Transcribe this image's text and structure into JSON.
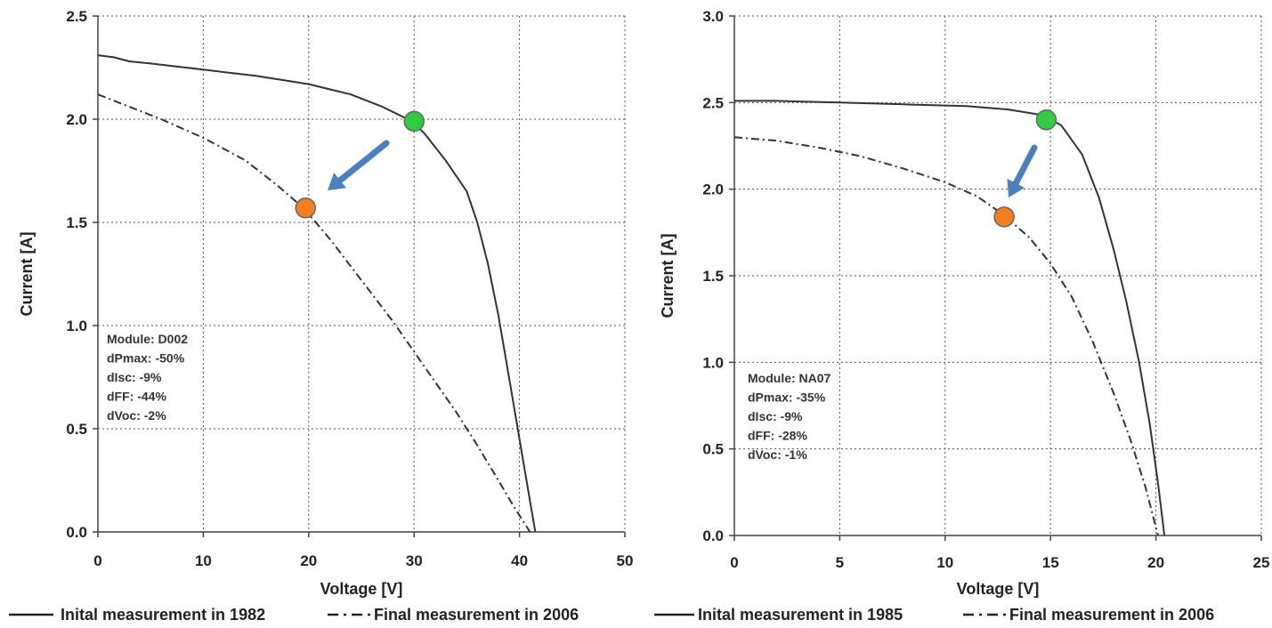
{
  "colors": {
    "curve": "#333333",
    "grid": "#555555",
    "initial_marker": "#2ecc40",
    "final_marker": "#f47f20",
    "arrow": "#4a7fc1"
  },
  "chart_data": [
    {
      "type": "line",
      "xlabel": "Voltage [V]",
      "ylabel": "Current [A]",
      "xlim": [
        0,
        50
      ],
      "ylim": [
        0,
        2.5
      ],
      "xticks": [
        "0",
        "10",
        "20",
        "30",
        "40",
        "50"
      ],
      "yticks": [
        "0.0",
        "0.5",
        "1.0",
        "1.5",
        "2.0",
        "2.5"
      ],
      "grid": true,
      "legend_position": "bottom",
      "info_box": [
        "Module: D002",
        "dPmax: -50%",
        "dIsc: -9%",
        "dFF: -44%",
        "dVoc: -2%"
      ],
      "series": [
        {
          "name": "Inital measurement in 1982",
          "style": "solid",
          "x": [
            0,
            1.5,
            3,
            5,
            10,
            15,
            20,
            24,
            27,
            29,
            30,
            31,
            33,
            35,
            36,
            37,
            38,
            39,
            40,
            41,
            41.5
          ],
          "y": [
            2.31,
            2.3,
            2.28,
            2.27,
            2.24,
            2.21,
            2.17,
            2.12,
            2.06,
            2.01,
            1.98,
            1.93,
            1.8,
            1.65,
            1.5,
            1.3,
            1.05,
            0.75,
            0.45,
            0.15,
            0
          ]
        },
        {
          "name": "Final measurement in 2006",
          "style": "dash-dot",
          "x": [
            0,
            3,
            6,
            10,
            14,
            17,
            19.5,
            22,
            25,
            28,
            31,
            34,
            36,
            38,
            39.5,
            41
          ],
          "y": [
            2.12,
            2.06,
            2.0,
            1.91,
            1.8,
            1.68,
            1.57,
            1.42,
            1.22,
            1.02,
            0.8,
            0.58,
            0.42,
            0.25,
            0.12,
            0
          ]
        }
      ],
      "markers": [
        {
          "label": "initial max power point",
          "x": 30,
          "y": 1.99,
          "color": "#2ecc40"
        },
        {
          "label": "final max power point",
          "x": 19.7,
          "y": 1.57,
          "color": "#f47f20"
        }
      ]
    },
    {
      "type": "line",
      "xlabel": "Voltage [V]",
      "ylabel": "Current [A]",
      "xlim": [
        0,
        25
      ],
      "ylim": [
        0,
        3.0
      ],
      "xticks": [
        "0",
        "5",
        "10",
        "15",
        "20",
        "25"
      ],
      "yticks": [
        "0.0",
        "0.5",
        "1.0",
        "1.5",
        "2.0",
        "2.5",
        "3.0"
      ],
      "grid": true,
      "legend_position": "bottom",
      "info_box": [
        "Module: NA07",
        "dPmax: -35%",
        "dIsc: -9%",
        "dFF: -28%",
        "dVoc: -1%"
      ],
      "series": [
        {
          "name": "Inital measurement in 1985",
          "style": "solid",
          "x": [
            0,
            2,
            5,
            8,
            11,
            13,
            14.5,
            15.5,
            16.5,
            17.3,
            18,
            18.6,
            19.2,
            19.7,
            20.1,
            20.4
          ],
          "y": [
            2.51,
            2.51,
            2.5,
            2.49,
            2.48,
            2.46,
            2.43,
            2.37,
            2.2,
            1.95,
            1.65,
            1.35,
            1.0,
            0.65,
            0.3,
            0
          ]
        },
        {
          "name": "Final measurement in 2006",
          "style": "dash-dot",
          "x": [
            0,
            2,
            4,
            6,
            8,
            10,
            11.5,
            12.8,
            14,
            15,
            16,
            17,
            18,
            18.8,
            19.5,
            20.1
          ],
          "y": [
            2.3,
            2.28,
            2.24,
            2.19,
            2.12,
            2.04,
            1.96,
            1.85,
            1.72,
            1.57,
            1.38,
            1.12,
            0.82,
            0.55,
            0.28,
            0
          ]
        }
      ],
      "markers": [
        {
          "label": "initial max power point",
          "x": 14.8,
          "y": 2.4,
          "color": "#2ecc40"
        },
        {
          "label": "final max power point",
          "x": 12.8,
          "y": 1.84,
          "color": "#f47f20"
        }
      ]
    }
  ]
}
